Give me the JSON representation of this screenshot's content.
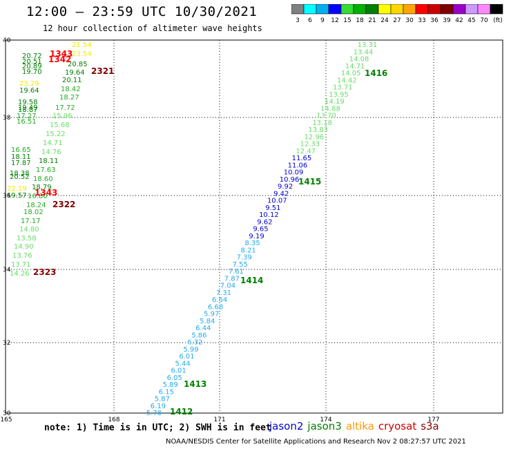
{
  "title": "12:00 — 23:59 UTC 10/30/2021",
  "subtitle": "12 hour collection of altimeter wave heights",
  "colorbar": {
    "colors": [
      "#808080",
      "#00ffff",
      "#00b0f0",
      "#0000ff",
      "#33dd33",
      "#00b000",
      "#008000",
      "#ffff00",
      "#ffd700",
      "#ffa500",
      "#ff0000",
      "#cc0000",
      "#800000",
      "#9900cc",
      "#cc99ff",
      "#ff88ff",
      "#000000"
    ],
    "labels": [
      "3",
      "6",
      "9",
      "12",
      "15",
      "18",
      "21",
      "24",
      "27",
      "30",
      "33",
      "36",
      "39",
      "42",
      "45",
      "70",
      "(ft)"
    ]
  },
  "axes": {
    "lon_ticks": [
      "165",
      "168",
      "171",
      "174",
      "177"
    ],
    "lat_ticks": [
      "40",
      "38",
      "36",
      "34",
      "32",
      "30"
    ]
  },
  "note": "note: 1) Time is in UTC; 2) SWH is in feet",
  "legend": [
    {
      "label": "jason2",
      "color": "#0000cc"
    },
    {
      "label": "jason3",
      "color": "#008000"
    },
    {
      "label": "altika",
      "color": "#ff9900"
    },
    {
      "label": "cryosat",
      "color": "#cc0000"
    },
    {
      "label": "s3a",
      "color": "#800000"
    }
  ],
  "footer": "NOAA/NESDIS Center for Satellite Applications and Research   Nov  2 08:27:57 UTC 2021",
  "east_track": {
    "values": [
      "13.31",
      "13.44",
      "14.08",
      "14.71",
      "14.05",
      "14.42",
      "13.71",
      "13.95",
      "14.19",
      "14.88",
      "13.70",
      "13.18",
      "13.83",
      "12.96",
      "12.33",
      "12.47",
      "11.65",
      "11.06",
      "10.09",
      "10.96",
      "9.92",
      "9.42",
      "10.07",
      "9.51",
      "10.12",
      "9.62",
      "9.65",
      "9.19",
      "8.35",
      "8.21",
      "7.39",
      "7.55",
      "7.61",
      "7.87",
      "7.04",
      "7.31",
      "6.64",
      "6.68",
      "5.97",
      "5.84",
      "6.44",
      "5.86",
      "6.32",
      "5.99",
      "6.01",
      "5.44",
      "6.01",
      "6.05",
      "5.89",
      "6.15",
      "5.87",
      "6.19",
      "5.78"
    ],
    "colors": [
      "#66dd66",
      "#66dd66",
      "#66dd66",
      "#66dd66",
      "#66dd66",
      "#66dd66",
      "#66dd66",
      "#66dd66",
      "#66dd66",
      "#66dd66",
      "#66dd66",
      "#66dd66",
      "#66dd66",
      "#66dd66",
      "#66dd66",
      "#66dd66",
      "#0000cc",
      "#0000cc",
      "#0000cc",
      "#0000cc",
      "#0000cc",
      "#0000cc",
      "#0000cc",
      "#0000cc",
      "#0000cc",
      "#0000cc",
      "#0000cc",
      "#0000cc",
      "#22aaee",
      "#22aaee",
      "#22aaee",
      "#22aaee",
      "#22aaee",
      "#22aaee",
      "#22aaee",
      "#22aaee",
      "#22aaee",
      "#22aaee",
      "#22aaee",
      "#22aaee",
      "#22aaee",
      "#22aaee",
      "#22aaee",
      "#22aaee",
      "#22aaee",
      "#22aaee",
      "#22aaee",
      "#22aaee",
      "#22aaee",
      "#22aaee",
      "#22aaee",
      "#22aaee",
      "#22aaee"
    ]
  },
  "west_points": [
    {
      "v": "21.54",
      "c": "#eeee00"
    },
    {
      "v": "20.72",
      "c": "#008000"
    },
    {
      "v": "23.54",
      "c": "#eeee00"
    },
    {
      "v": "20.51",
      "c": "#008000"
    },
    {
      "v": "20.89",
      "c": "#008000"
    },
    {
      "v": "20.85",
      "c": "#008000"
    },
    {
      "v": "19.70",
      "c": "#008000"
    },
    {
      "v": "19.64",
      "c": "#008000"
    },
    {
      "v": "20.11",
      "c": "#008000"
    },
    {
      "v": "23.29",
      "c": "#eeee00"
    },
    {
      "v": "18.42",
      "c": "#22aa22"
    },
    {
      "v": "19.64",
      "c": "#008000"
    },
    {
      "v": "18.27",
      "c": "#22aa22"
    },
    {
      "v": "19.58",
      "c": "#008000"
    },
    {
      "v": "19.49",
      "c": "#008000"
    },
    {
      "v": "17.72",
      "c": "#22aa22"
    },
    {
      "v": "18.87",
      "c": "#008000"
    },
    {
      "v": "17.27",
      "c": "#22aa22"
    },
    {
      "v": "15.96",
      "c": "#66dd66"
    },
    {
      "v": "16.51",
      "c": "#22aa22"
    },
    {
      "v": "15.68",
      "c": "#66dd66"
    },
    {
      "v": "15.22",
      "c": "#66dd66"
    },
    {
      "v": "14.71",
      "c": "#66dd66"
    },
    {
      "v": "16.65",
      "c": "#22aa22"
    },
    {
      "v": "14.76",
      "c": "#66dd66"
    },
    {
      "v": "18.11",
      "c": "#008000"
    },
    {
      "v": "17.87",
      "c": "#008000"
    },
    {
      "v": "18.11",
      "c": "#008000"
    },
    {
      "v": "17.63",
      "c": "#22aa22"
    },
    {
      "v": "18.38",
      "c": "#008000"
    },
    {
      "v": "20.52",
      "c": "#008000"
    },
    {
      "v": "18.60",
      "c": "#22aa22"
    },
    {
      "v": "18.79",
      "c": "#008000"
    },
    {
      "v": "22.19",
      "c": "#eeee00"
    },
    {
      "v": "19.57",
      "c": "#008000"
    },
    {
      "v": "16.80",
      "c": "#22aa22"
    },
    {
      "v": "18.24",
      "c": "#22aa22"
    },
    {
      "v": "18.02",
      "c": "#22aa22"
    },
    {
      "v": "17.17",
      "c": "#22aa22"
    },
    {
      "v": "14.80",
      "c": "#66dd66"
    },
    {
      "v": "13.58",
      "c": "#66dd66"
    },
    {
      "v": "14.90",
      "c": "#66dd66"
    },
    {
      "v": "13.76",
      "c": "#66dd66"
    },
    {
      "v": "13.71",
      "c": "#66dd66"
    },
    {
      "v": "14.26",
      "c": "#66dd66"
    }
  ],
  "pass_labels": [
    {
      "v": "1343",
      "c": "#ff0000"
    },
    {
      "v": "1342",
      "c": "#ff0000"
    },
    {
      "v": "2321",
      "c": "#800000"
    },
    {
      "v": "1416",
      "c": "#008000"
    },
    {
      "v": "1415",
      "c": "#008000"
    },
    {
      "v": "1343",
      "c": "#ff0000"
    },
    {
      "v": "2322",
      "c": "#800000"
    },
    {
      "v": "2323",
      "c": "#800000"
    },
    {
      "v": "1414",
      "c": "#008000"
    },
    {
      "v": "1413",
      "c": "#008000"
    },
    {
      "v": "1412",
      "c": "#008000"
    }
  ]
}
